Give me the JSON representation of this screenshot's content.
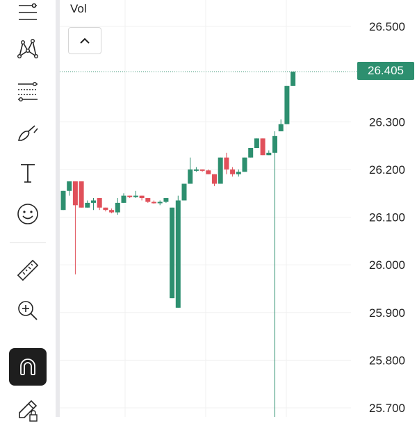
{
  "toolbar": {
    "tools": [
      {
        "name": "lines-icon"
      },
      {
        "name": "pattern-icon"
      },
      {
        "name": "fib-retracement-icon"
      },
      {
        "name": "brush-icon"
      },
      {
        "name": "text-icon"
      },
      {
        "name": "emoji-icon"
      },
      {
        "name": "ruler-icon"
      },
      {
        "name": "zoom-in-icon"
      },
      {
        "name": "magnet-icon",
        "active": true
      },
      {
        "name": "pencil-lock-icon"
      }
    ]
  },
  "pane": {
    "volume_label": "Vol",
    "collapse_icon": "chevron-up-icon"
  },
  "price_axis": {
    "current_price_label": "26.405",
    "current_price_color": "#2d8f6f"
  },
  "colors": {
    "up": "#2d8f6f",
    "down": "#e0505a",
    "grid": "#f0f0f0"
  },
  "chart_data": {
    "type": "candlestick",
    "y_ticks": [
      "26.500",
      "26.300",
      "26.200",
      "26.100",
      "26.000",
      "25.900",
      "25.800",
      "25.700"
    ],
    "ylim": [
      25.68,
      26.52
    ],
    "current_price": 26.405,
    "candles": [
      {
        "o": 26.115,
        "h": 26.155,
        "l": 26.115,
        "c": 26.155
      },
      {
        "o": 26.155,
        "h": 26.175,
        "l": 26.145,
        "c": 26.175
      },
      {
        "o": 26.175,
        "h": 26.175,
        "l": 25.98,
        "c": 26.125
      },
      {
        "o": 26.175,
        "h": 26.175,
        "l": 26.12,
        "c": 26.12
      },
      {
        "o": 26.12,
        "h": 26.135,
        "l": 26.12,
        "c": 26.13
      },
      {
        "o": 26.13,
        "h": 26.14,
        "l": 26.115,
        "c": 26.135
      },
      {
        "o": 26.14,
        "h": 26.14,
        "l": 26.115,
        "c": 26.12
      },
      {
        "o": 26.12,
        "h": 26.12,
        "l": 26.112,
        "c": 26.115
      },
      {
        "o": 26.115,
        "h": 26.118,
        "l": 26.108,
        "c": 26.11
      },
      {
        "o": 26.11,
        "h": 26.14,
        "l": 26.105,
        "c": 26.13
      },
      {
        "o": 26.13,
        "h": 26.15,
        "l": 26.13,
        "c": 26.145
      },
      {
        "o": 26.145,
        "h": 26.145,
        "l": 26.14,
        "c": 26.142
      },
      {
        "o": 26.142,
        "h": 26.155,
        "l": 26.14,
        "c": 26.145
      },
      {
        "o": 26.145,
        "h": 26.145,
        "l": 26.135,
        "c": 26.14
      },
      {
        "o": 26.14,
        "h": 26.14,
        "l": 26.13,
        "c": 26.132
      },
      {
        "o": 26.132,
        "h": 26.135,
        "l": 26.128,
        "c": 26.13
      },
      {
        "o": 26.13,
        "h": 26.135,
        "l": 26.125,
        "c": 26.132
      },
      {
        "o": 26.132,
        "h": 26.14,
        "l": 26.13,
        "c": 26.14
      },
      {
        "o": 25.93,
        "h": 26.12,
        "l": 25.93,
        "c": 26.12
      },
      {
        "o": 25.91,
        "h": 26.145,
        "l": 25.91,
        "c": 26.135
      },
      {
        "o": 26.135,
        "h": 26.17,
        "l": 26.135,
        "c": 26.17
      },
      {
        "o": 26.17,
        "h": 26.225,
        "l": 26.17,
        "c": 26.2
      },
      {
        "o": 26.2,
        "h": 26.205,
        "l": 26.195,
        "c": 26.2
      },
      {
        "o": 26.2,
        "h": 26.2,
        "l": 26.195,
        "c": 26.198
      },
      {
        "o": 26.198,
        "h": 26.2,
        "l": 26.19,
        "c": 26.19
      },
      {
        "o": 26.19,
        "h": 26.19,
        "l": 26.165,
        "c": 26.17
      },
      {
        "o": 26.17,
        "h": 26.225,
        "l": 26.17,
        "c": 26.225
      },
      {
        "o": 26.225,
        "h": 26.235,
        "l": 26.19,
        "c": 26.2
      },
      {
        "o": 26.2,
        "h": 26.205,
        "l": 26.185,
        "c": 26.19
      },
      {
        "o": 26.19,
        "h": 26.2,
        "l": 26.185,
        "c": 26.195
      },
      {
        "o": 26.195,
        "h": 26.225,
        "l": 26.195,
        "c": 26.225
      },
      {
        "o": 26.225,
        "h": 26.245,
        "l": 26.225,
        "c": 26.245
      },
      {
        "o": 26.245,
        "h": 26.265,
        "l": 26.245,
        "c": 26.265
      },
      {
        "o": 26.265,
        "h": 26.265,
        "l": 26.23,
        "c": 26.23
      },
      {
        "o": 26.23,
        "h": 26.24,
        "l": 26.23,
        "c": 26.235
      },
      {
        "o": 26.235,
        "h": 26.28,
        "l": 25.68,
        "c": 26.27
      },
      {
        "o": 26.28,
        "h": 26.305,
        "l": 26.28,
        "c": 26.295
      },
      {
        "o": 26.295,
        "h": 26.375,
        "l": 26.295,
        "c": 26.375
      },
      {
        "o": 26.375,
        "h": 26.405,
        "l": 26.375,
        "c": 26.405
      }
    ]
  }
}
